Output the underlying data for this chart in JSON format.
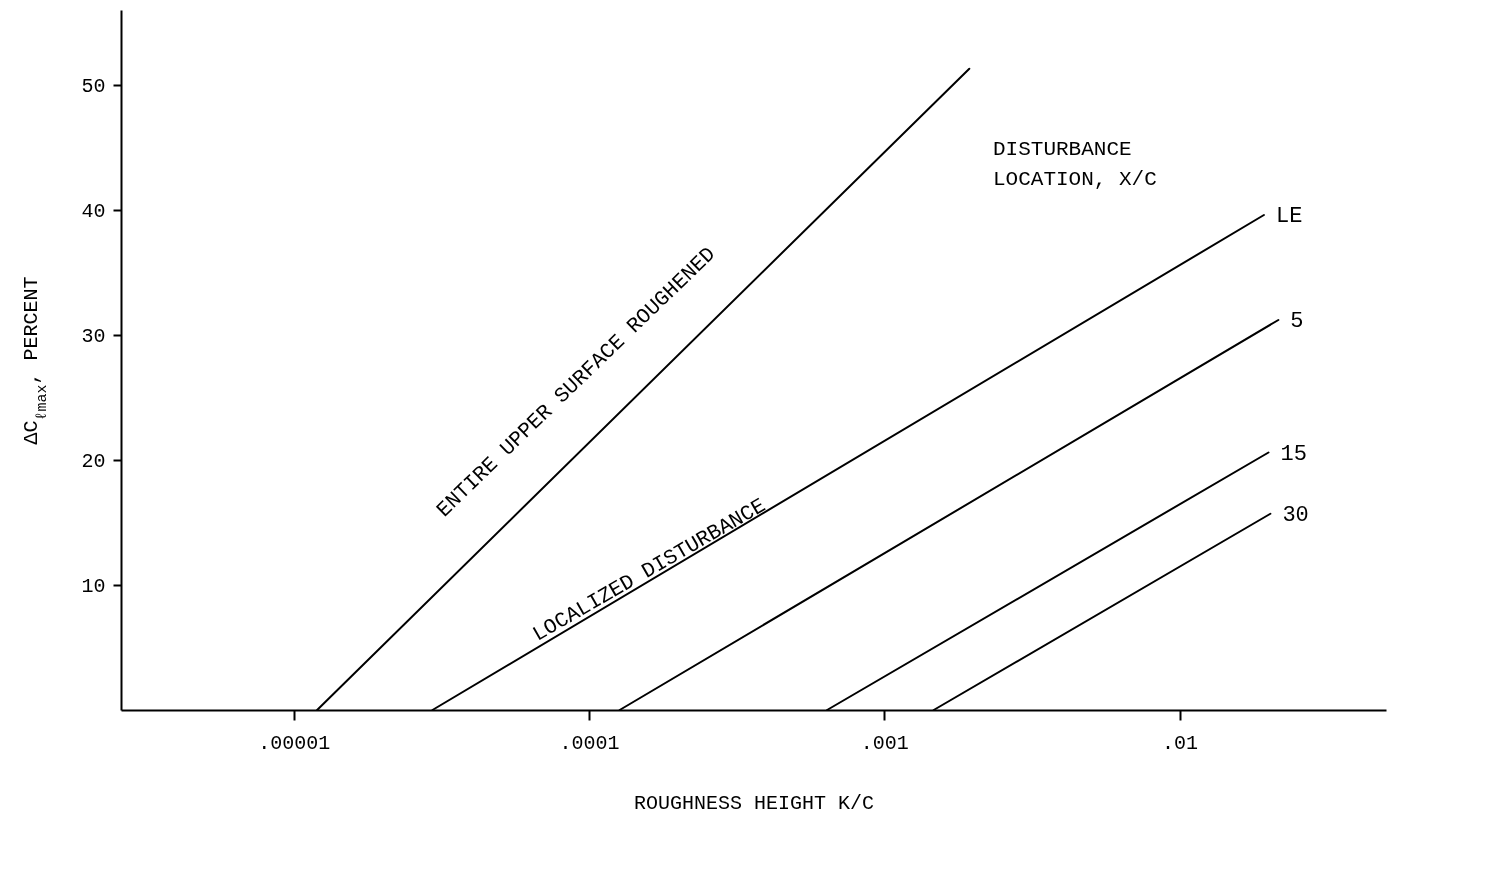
{
  "chart_data": {
    "type": "line",
    "xlabel": "ROUGHNESS HEIGHT K/C",
    "ylabel": "ΔC$_{ℓmax}$, PERCENT",
    "legend_title": "DISTURBANCE LOCATION, X/C",
    "log": "x",
    "xlim": [
      2.6e-06,
      0.05
    ],
    "xticks": [
      {
        "value": 1e-05,
        "label": ".00001"
      },
      {
        "value": 0.0001,
        "label": ".0001"
      },
      {
        "value": 0.001,
        "label": ".001"
      },
      {
        "value": 0.01,
        "label": ".01"
      }
    ],
    "ylim": [
      0,
      56
    ],
    "yticks": [
      10,
      20,
      30,
      40,
      50
    ],
    "grid": false,
    "legend": false,
    "marker": "none",
    "line_style": "solid",
    "series": [
      {
        "color": "#000000",
        "x": [
          1.2e-05,
          0.00194
        ],
        "values": [
          0,
          51.3
        ]
      },
      {
        "name": "LE",
        "color": "#000000",
        "x": [
          2.95e-05,
          0.0193
        ],
        "values": [
          0,
          39.6
        ]
      },
      {
        "name": "5",
        "color": "#000000",
        "x": [
          0.000127,
          0.0216
        ],
        "values": [
          0,
          31.2
        ]
      },
      {
        "name": "15",
        "color": "#000000",
        "x": [
          0.00064,
          0.02
        ],
        "values": [
          0,
          20.6
        ]
      },
      {
        "name": "30",
        "color": "#000000",
        "x": [
          0.00147,
          0.0203
        ],
        "values": [
          0,
          15.7
        ]
      }
    ],
    "annotations": [
      "ENTIRE UPPER SURFACE ROUGHENED",
      "LOCALIZED DISTURBANCE"
    ]
  }
}
